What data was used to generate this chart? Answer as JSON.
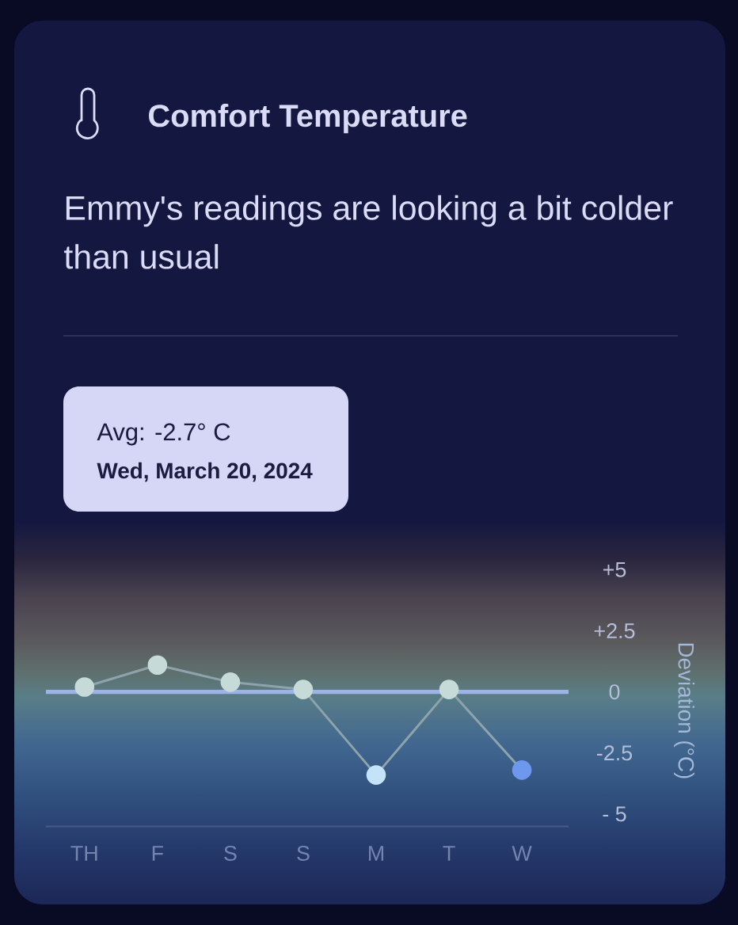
{
  "chart_data": {
    "type": "line",
    "title": "Comfort Temperature",
    "subtitle": "Emmy's readings are looking a bit colder than usual",
    "annotations": [
      "Avg: -2.7° C",
      "Wed, March 20, 2024"
    ],
    "categories": [
      "TH",
      "F",
      "S",
      "S",
      "M",
      "T",
      "W"
    ],
    "series": [
      {
        "color": "#8ea3ab",
        "colors": [
          "#c6dad8",
          "#c6dad8",
          "#c6dad8",
          "#c6dad8",
          "#c4e2f8",
          "#c6dad8",
          "#6e98ee"
        ],
        "values": [
          0.2,
          1.1,
          0.4,
          0.1,
          -3.4,
          0.1,
          -3.2
        ]
      }
    ],
    "ylabel": "Deviation (°C)",
    "ylim": [
      -5.5,
      5
    ],
    "yticks": [
      {
        "value": 5,
        "label": "+5"
      },
      {
        "value": 2.5,
        "label": "+2.5"
      },
      0,
      -2.5,
      {
        "value": -5,
        "label": "- 5"
      }
    ],
    "ref_lines": [
      {
        "axis": "y",
        "value": 0,
        "color": "#9db2e8"
      }
    ],
    "marker": "circle",
    "line_style": "solid",
    "grid": false
  }
}
